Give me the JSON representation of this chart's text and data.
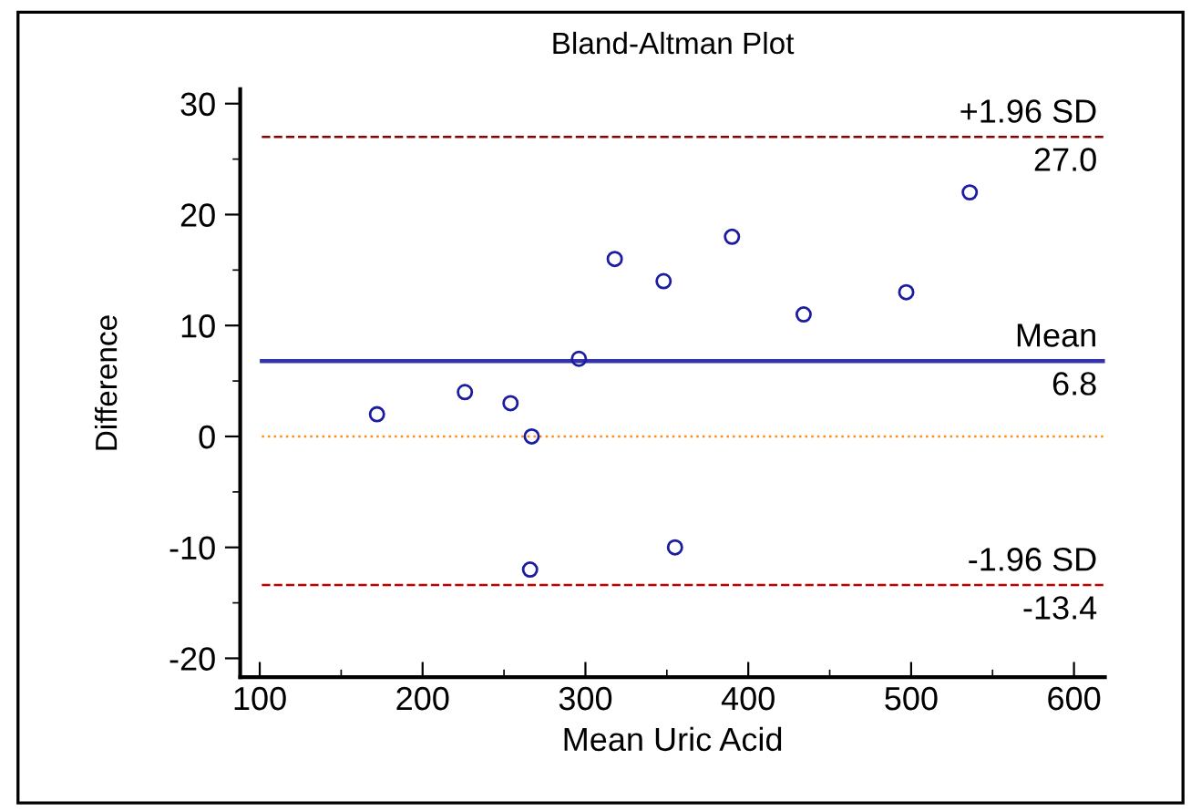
{
  "chart_data": {
    "type": "scatter",
    "title": "Bland-Altman Plot",
    "xlabel": "Mean Uric Acid",
    "ylabel": "Difference",
    "x": [
      172,
      226,
      254,
      267,
      296,
      318,
      348,
      390,
      434,
      497,
      536,
      266,
      355
    ],
    "series": [
      {
        "color": "#1c1ca0",
        "values": [
          2,
          4,
          3,
          0,
          7,
          16,
          14,
          18,
          11,
          13,
          22,
          -12,
          -10
        ]
      }
    ],
    "marker": "circle",
    "xlim": [
      88,
      619
    ],
    "ylim": [
      -21.7,
      31.3
    ],
    "xticks": [
      100,
      {
        "value": 150,
        "label": null
      },
      200,
      {
        "value": 250,
        "label": null
      },
      300,
      {
        "value": 350,
        "label": null
      },
      400,
      {
        "value": 450,
        "label": null
      },
      500,
      {
        "value": 550,
        "label": null
      },
      600
    ],
    "yticks": [
      -20,
      {
        "value": -15,
        "label": null
      },
      -10,
      {
        "value": -5,
        "label": null
      },
      0,
      {
        "value": 5,
        "label": null
      },
      10,
      {
        "value": 15,
        "label": null
      },
      20,
      {
        "value": 25,
        "label": null
      },
      30
    ],
    "ref_lines": [
      {
        "axis": "y",
        "value": 27.0,
        "label": "+1.96 SD",
        "color": "#8b0000",
        "line_style": "dashed"
      },
      {
        "axis": "y",
        "value": 6.8,
        "label": "Mean",
        "color": "#3333aa",
        "line_style": "solid"
      },
      {
        "axis": "y",
        "value": 0,
        "color": "#ff8c1a",
        "line_style": "dotted"
      },
      {
        "axis": "y",
        "value": -13.4,
        "label": "-1.96 SD",
        "color": "#c00000",
        "line_style": "dashed"
      }
    ],
    "annotations": [
      {
        "text": "27.0",
        "y": 27.0
      },
      {
        "text": "6.8",
        "y": 6.8
      },
      {
        "text": "-13.4",
        "y": -13.4
      }
    ],
    "grid": false,
    "legend": false
  }
}
